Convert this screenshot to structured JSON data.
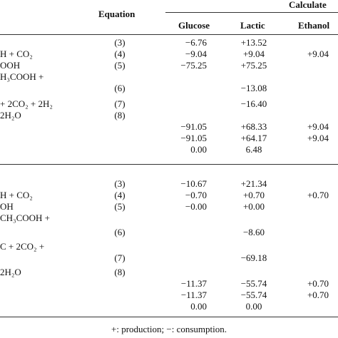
{
  "header": {
    "equation": "Equation",
    "calculated": "Calculate",
    "columns": {
      "glucose": "Glucose",
      "lactic": "Lactic",
      "ethanol": "Ethanol"
    }
  },
  "sections": [
    {
      "rows": [
        {
          "equation": "(3)",
          "glucose": "−6.76",
          "lactic": "+13.52"
        },
        {
          "reaction": "H + CO₂",
          "equation": "(4)",
          "glucose": "−9.04",
          "lactic": "+9.04",
          "ethanol": "+9.04"
        },
        {
          "reaction": "OOH",
          "equation": "(5)",
          "glucose": "−75.25",
          "lactic": "+75.25"
        },
        {
          "reaction": "H₃COOH +"
        },
        {
          "equation": "(6)",
          "lactic": "−13.08"
        },
        {
          "reaction": "+ 2CO₂ + 2H₂",
          "equation": "(7)",
          "lactic": "−16.40"
        },
        {
          "reaction": "2H₂O",
          "equation": "(8)"
        },
        {
          "glucose": "−91.05",
          "lactic": "+68.33",
          "ethanol": "+9.04"
        },
        {
          "glucose": "−91.05",
          "lactic": "+64.17",
          "ethanol": "+9.04"
        },
        {
          "glucose": "0.00",
          "lactic": "6.48"
        }
      ]
    },
    {
      "rows": [
        {
          "equation": "(3)",
          "glucose": "−10.67",
          "lactic": "+21.34"
        },
        {
          "reaction": "H + CO₂",
          "equation": "(4)",
          "glucose": "−0.70",
          "lactic": "+0.70",
          "ethanol": "+0.70"
        },
        {
          "reaction": "OH",
          "equation": "(5)",
          "glucose": "−0.00",
          "lactic": "+0.00"
        },
        {
          "reaction": "CH₃COOH +"
        },
        {
          "equation": "(6)",
          "lactic": "−8.60"
        },
        {
          "reaction": "C + 2CO₂ +"
        },
        {
          "equation": "(7)",
          "lactic": "−69.18"
        },
        {
          "reaction": "2H₂O",
          "equation": "(8)"
        },
        {
          "glucose": "−11.37",
          "lactic": "−55.74",
          "ethanol": "+0.70"
        },
        {
          "glucose": "−11.37",
          "lactic": "−55.74",
          "ethanol": "+0.70"
        },
        {
          "glucose": "0.00",
          "lactic": "0.00"
        }
      ]
    }
  ],
  "footnote": "+: production; −: consumption."
}
